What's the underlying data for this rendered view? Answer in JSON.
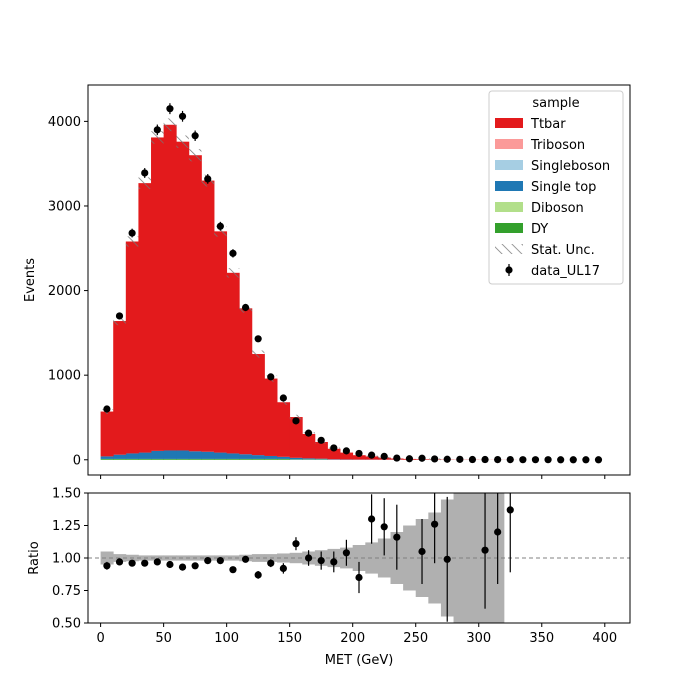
{
  "chart_data": [
    {
      "type": "bar",
      "subtype": "stacked-histogram-with-data-points",
      "xlim": [
        -10,
        420
      ],
      "ylim": [
        -180,
        4430
      ],
      "xlabel": "",
      "ylabel": "Events",
      "x_ticks": [
        0,
        50,
        100,
        150,
        200,
        250,
        300,
        350,
        400
      ],
      "x_tick_labels_shown": false,
      "y_ticks": [
        0,
        1000,
        2000,
        3000,
        4000
      ],
      "y_tick_labels": [
        "0",
        "1000",
        "2000",
        "3000",
        "4000"
      ],
      "bin_edges": [
        0,
        10,
        20,
        30,
        40,
        50,
        60,
        70,
        80,
        90,
        100,
        110,
        120,
        130,
        140,
        150,
        160,
        170,
        180,
        190,
        200,
        210,
        220,
        230,
        240,
        250,
        260,
        270,
        280,
        290,
        300,
        310,
        320,
        330,
        340,
        350,
        360,
        370,
        380,
        390,
        400
      ],
      "bin_centers": [
        5,
        15,
        25,
        35,
        45,
        55,
        65,
        75,
        85,
        95,
        105,
        115,
        125,
        135,
        145,
        155,
        165,
        175,
        185,
        195,
        205,
        215,
        225,
        235,
        245,
        255,
        265,
        275,
        285,
        295,
        305,
        315,
        325,
        335,
        345,
        355,
        365,
        375,
        385,
        395
      ],
      "stack_order_bottom_to_top": [
        "DY",
        "Diboson",
        "Single top",
        "Singleboson",
        "Triboson",
        "Ttbar"
      ],
      "series": [
        {
          "name": "DY",
          "color": "#33a02c",
          "values": [
            10,
            10,
            10,
            10,
            10,
            10,
            10,
            10,
            10,
            10,
            10,
            10,
            10,
            10,
            10,
            5,
            5,
            5,
            0,
            0,
            0,
            0,
            0,
            0,
            0,
            0,
            0,
            0,
            0,
            0,
            0,
            0,
            0,
            0,
            0,
            0,
            0,
            0,
            0,
            0
          ]
        },
        {
          "name": "Diboson",
          "color": "#b2df8a",
          "values": [
            0,
            0,
            0,
            0,
            0,
            0,
            0,
            0,
            0,
            0,
            0,
            0,
            0,
            0,
            0,
            0,
            0,
            0,
            0,
            0,
            0,
            0,
            0,
            0,
            0,
            0,
            0,
            0,
            0,
            0,
            0,
            0,
            0,
            0,
            0,
            0,
            0,
            0,
            0,
            0
          ]
        },
        {
          "name": "Single top",
          "color": "#1f78b4",
          "values": [
            30,
            50,
            65,
            75,
            95,
            100,
            100,
            90,
            85,
            75,
            65,
            55,
            45,
            35,
            25,
            18,
            12,
            8,
            5,
            3,
            2,
            2,
            1,
            1,
            0,
            0,
            0,
            0,
            0,
            0,
            0,
            0,
            0,
            0,
            0,
            0,
            0,
            0,
            0,
            0
          ]
        },
        {
          "name": "Singleboson",
          "color": "#a6cee3",
          "values": [
            0,
            0,
            0,
            0,
            0,
            0,
            0,
            0,
            0,
            0,
            0,
            0,
            0,
            0,
            0,
            0,
            0,
            0,
            0,
            0,
            0,
            0,
            0,
            0,
            0,
            0,
            0,
            0,
            0,
            0,
            0,
            0,
            0,
            0,
            0,
            0,
            0,
            0,
            0,
            0
          ]
        },
        {
          "name": "Triboson",
          "color": "#fb9a99",
          "values": [
            0,
            0,
            0,
            0,
            0,
            0,
            0,
            0,
            0,
            0,
            0,
            0,
            0,
            0,
            0,
            0,
            0,
            0,
            0,
            0,
            0,
            0,
            0,
            0,
            0,
            0,
            0,
            0,
            0,
            0,
            0,
            0,
            0,
            0,
            0,
            0,
            0,
            0,
            0,
            0
          ]
        },
        {
          "name": "Ttbar",
          "color": "#e31a1c",
          "values": [
            530,
            1580,
            2505,
            3185,
            3705,
            3850,
            3650,
            3500,
            3205,
            2615,
            2135,
            1725,
            1195,
            915,
            645,
            482,
            288,
            197,
            125,
            82,
            52,
            38,
            24,
            14,
            10,
            7,
            5,
            3,
            2,
            2,
            1,
            1,
            1,
            0,
            0,
            0,
            0,
            0,
            0,
            0
          ]
        }
      ],
      "totals": [
        570,
        1640,
        2580,
        3270,
        3810,
        3960,
        3760,
        3600,
        3300,
        2700,
        2210,
        1790,
        1250,
        960,
        680,
        505,
        305,
        210,
        130,
        85,
        54,
        40,
        25,
        15,
        10,
        7,
        5,
        3,
        2,
        2,
        1,
        1,
        1,
        0,
        0,
        0,
        0,
        0,
        0,
        0
      ],
      "data_points": {
        "name": "data_UL17",
        "color": "#000000",
        "x": [
          5,
          15,
          25,
          35,
          45,
          55,
          65,
          75,
          85,
          95,
          105,
          115,
          125,
          135,
          145,
          155,
          165,
          175,
          185,
          195,
          205,
          215,
          225,
          235,
          245,
          255,
          265,
          275,
          285,
          295,
          305,
          315,
          325,
          335,
          345,
          355,
          365,
          375,
          385,
          395
        ],
        "y": [
          600,
          1700,
          2680,
          3390,
          3900,
          4150,
          4060,
          3830,
          3320,
          2760,
          2440,
          1800,
          1430,
          980,
          730,
          460,
          315,
          230,
          140,
          105,
          75,
          55,
          40,
          20,
          12,
          18,
          10,
          6,
          5,
          3,
          3,
          2,
          2,
          1,
          1,
          1,
          0,
          0,
          0,
          0
        ]
      },
      "legend": {
        "title": "sample",
        "placement": "upper right",
        "entries": [
          {
            "label": "Ttbar",
            "kind": "patch",
            "color": "#e31a1c"
          },
          {
            "label": "Triboson",
            "kind": "patch",
            "color": "#fb9a99"
          },
          {
            "label": "Singleboson",
            "kind": "patch",
            "color": "#a6cee3"
          },
          {
            "label": "Single top",
            "kind": "patch",
            "color": "#1f78b4"
          },
          {
            "label": "Diboson",
            "kind": "patch",
            "color": "#b2df8a"
          },
          {
            "label": "DY",
            "kind": "patch",
            "color": "#33a02c"
          },
          {
            "label": "Stat. Unc.",
            "kind": "hatch",
            "color": "#888888"
          },
          {
            "label": "data_UL17",
            "kind": "errorbar",
            "color": "#000000"
          }
        ]
      },
      "grid": false
    },
    {
      "type": "scatter",
      "subtype": "ratio-panel",
      "xlim": [
        -10,
        420
      ],
      "ylim": [
        0.5,
        1.5
      ],
      "xlabel": "MET (GeV)",
      "ylabel": "Ratio",
      "x_ticks": [
        0,
        50,
        100,
        150,
        200,
        250,
        300,
        350,
        400
      ],
      "x_tick_labels": [
        "0",
        "50",
        "100",
        "150",
        "200",
        "250",
        "300",
        "350",
        "400"
      ],
      "y_ticks": [
        0.5,
        0.75,
        1.0,
        1.25,
        1.5
      ],
      "y_tick_labels": [
        "0.50",
        "0.75",
        "1.00",
        "1.25",
        "1.50"
      ],
      "reference_line": {
        "y": 1.0,
        "style": "dashed",
        "color": "#808080"
      },
      "uncertainty_band": {
        "color": "#b0b0b0",
        "bin_edges": [
          0,
          10,
          20,
          30,
          40,
          50,
          60,
          70,
          80,
          90,
          100,
          110,
          120,
          130,
          140,
          150,
          160,
          170,
          180,
          190,
          200,
          210,
          220,
          230,
          240,
          250,
          260,
          270,
          280,
          290,
          300,
          310,
          320
        ],
        "half_width": [
          0.05,
          0.03,
          0.025,
          0.02,
          0.02,
          0.02,
          0.02,
          0.02,
          0.02,
          0.02,
          0.02,
          0.025,
          0.03,
          0.03,
          0.035,
          0.04,
          0.05,
          0.06,
          0.07,
          0.08,
          0.1,
          0.12,
          0.15,
          0.2,
          0.25,
          0.3,
          0.35,
          0.45,
          0.5,
          0.5,
          0.5,
          0.5
        ]
      },
      "points": {
        "x": [
          5,
          15,
          25,
          35,
          45,
          55,
          65,
          75,
          85,
          95,
          105,
          115,
          125,
          135,
          145,
          155,
          165,
          175,
          185,
          195,
          205,
          215,
          225,
          235,
          255,
          265,
          275,
          305,
          315,
          325
        ],
        "y": [
          0.94,
          0.97,
          0.96,
          0.96,
          0.97,
          0.95,
          0.93,
          0.94,
          0.98,
          0.98,
          0.91,
          0.99,
          0.87,
          0.96,
          0.92,
          1.11,
          1.0,
          0.98,
          0.97,
          1.04,
          0.85,
          1.3,
          1.24,
          1.16,
          1.05,
          1.26,
          0.99,
          1.06,
          1.2,
          1.37
        ],
        "err": [
          0.03,
          0.02,
          0.02,
          0.02,
          0.02,
          0.02,
          0.02,
          0.02,
          0.02,
          0.02,
          0.02,
          0.02,
          0.03,
          0.03,
          0.04,
          0.05,
          0.06,
          0.07,
          0.08,
          0.1,
          0.12,
          0.19,
          0.22,
          0.25,
          0.25,
          0.3,
          0.48,
          0.45,
          0.4,
          0.48
        ]
      },
      "grid": false
    }
  ]
}
